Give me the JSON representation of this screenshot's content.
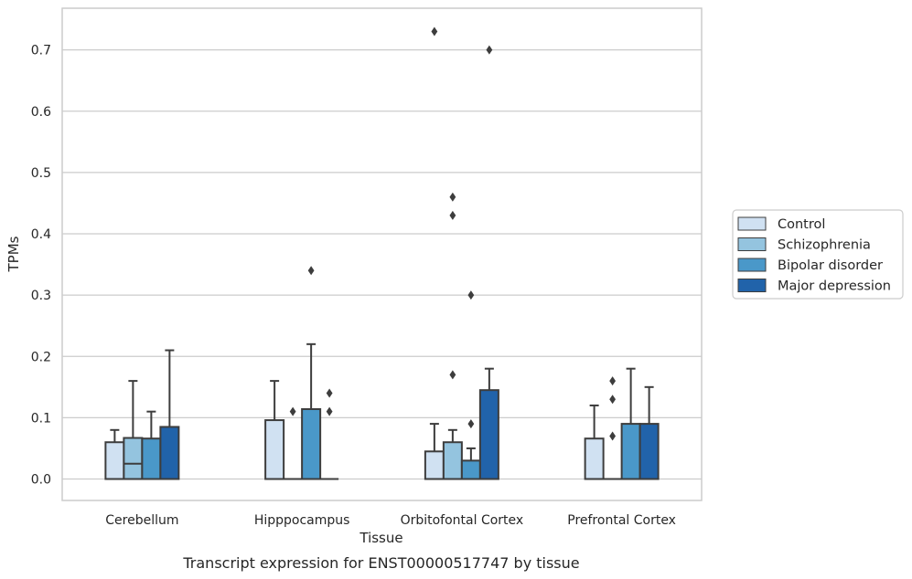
{
  "caption": "Transcript expression for ENST00000517747 by tissue",
  "chart_data": {
    "type": "box",
    "xlabel": "Tissue",
    "ylabel": "TPMs",
    "ylim": [
      -0.035,
      0.768
    ],
    "yticks": [
      0.0,
      0.1,
      0.2,
      0.3,
      0.4,
      0.5,
      0.6,
      0.7
    ],
    "ytick_labels": [
      "0.0",
      "0.1",
      "0.2",
      "0.3",
      "0.4",
      "0.5",
      "0.6",
      "0.7"
    ],
    "grid": "horizontal",
    "legend_position": "right",
    "categories": [
      "Cerebellum",
      "Hipppocampus",
      "Orbitofontal Cortex",
      "Prefrontal Cortex"
    ],
    "series": [
      {
        "name": "Control",
        "color": "#d0e1f2",
        "boxes": [
          {
            "q1": 0.0,
            "median": 0.0,
            "q3": 0.06,
            "whislo": 0.0,
            "whishi": 0.08,
            "fliers": []
          },
          {
            "q1": 0.0,
            "median": 0.0,
            "q3": 0.096,
            "whislo": 0.0,
            "whishi": 0.16,
            "fliers": []
          },
          {
            "q1": 0.0,
            "median": 0.0,
            "q3": 0.045,
            "whislo": 0.0,
            "whishi": 0.09,
            "fliers": [
              0.73
            ]
          },
          {
            "q1": 0.0,
            "median": 0.0,
            "q3": 0.066,
            "whislo": 0.0,
            "whishi": 0.12,
            "fliers": []
          }
        ]
      },
      {
        "name": "Schizophrenia",
        "color": "#94c4df",
        "boxes": [
          {
            "q1": 0.0,
            "median": 0.025,
            "q3": 0.067,
            "whislo": 0.0,
            "whishi": 0.16,
            "fliers": []
          },
          {
            "q1": 0.0,
            "median": 0.0,
            "q3": 0.0,
            "whislo": 0.0,
            "whishi": 0.0,
            "fliers": [
              0.11
            ]
          },
          {
            "q1": 0.0,
            "median": 0.0,
            "q3": 0.06,
            "whislo": 0.0,
            "whishi": 0.08,
            "fliers": [
              0.17,
              0.43,
              0.46
            ]
          },
          {
            "q1": 0.0,
            "median": 0.0,
            "q3": 0.0,
            "whislo": 0.0,
            "whishi": 0.0,
            "fliers": [
              0.07,
              0.13,
              0.16
            ]
          }
        ]
      },
      {
        "name": "Bipolar disorder",
        "color": "#4a98c9",
        "boxes": [
          {
            "q1": 0.0,
            "median": 0.0,
            "q3": 0.066,
            "whislo": 0.0,
            "whishi": 0.11,
            "fliers": []
          },
          {
            "q1": 0.0,
            "median": 0.0,
            "q3": 0.114,
            "whislo": 0.0,
            "whishi": 0.22,
            "fliers": [
              0.34
            ]
          },
          {
            "q1": 0.0,
            "median": 0.0,
            "q3": 0.03,
            "whislo": 0.0,
            "whishi": 0.05,
            "fliers": [
              0.09,
              0.3
            ]
          },
          {
            "q1": 0.0,
            "median": 0.0,
            "q3": 0.09,
            "whislo": 0.0,
            "whishi": 0.18,
            "fliers": []
          }
        ]
      },
      {
        "name": "Major depression",
        "color": "#2163aa",
        "boxes": [
          {
            "q1": 0.0,
            "median": 0.0,
            "q3": 0.085,
            "whislo": 0.0,
            "whishi": 0.21,
            "fliers": []
          },
          {
            "q1": 0.0,
            "median": 0.0,
            "q3": 0.0,
            "whislo": 0.0,
            "whishi": 0.0,
            "fliers": [
              0.11,
              0.14
            ]
          },
          {
            "q1": 0.0,
            "median": 0.0,
            "q3": 0.145,
            "whislo": 0.0,
            "whishi": 0.18,
            "fliers": [
              0.7
            ]
          },
          {
            "q1": 0.0,
            "median": 0.0,
            "q3": 0.09,
            "whislo": 0.0,
            "whishi": 0.15,
            "fliers": []
          }
        ]
      }
    ]
  }
}
